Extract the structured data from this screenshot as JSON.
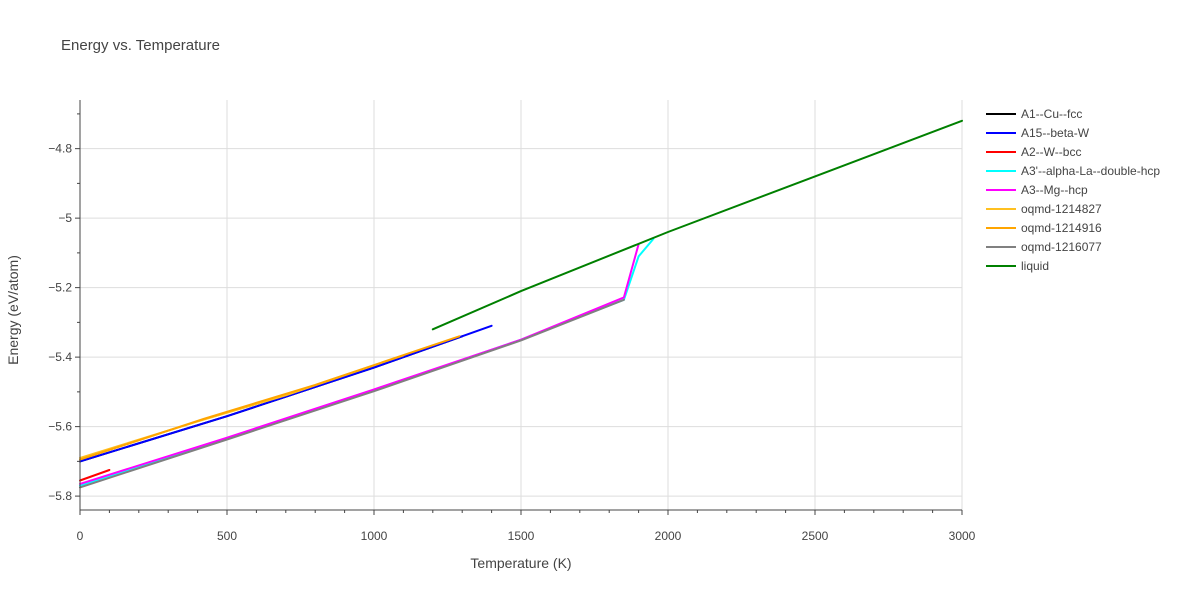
{
  "chart_data": {
    "type": "line",
    "title": "Energy vs. Temperature",
    "xlabel": "Temperature (K)",
    "ylabel": "Energy (eV/atom)",
    "xlim": [
      0,
      3000
    ],
    "ylim": [
      -5.84,
      -4.66
    ],
    "xticks": [
      0,
      500,
      1000,
      1500,
      2000,
      2500,
      3000
    ],
    "xtick_labels": [
      "0",
      "500",
      "1000",
      "1500",
      "2000",
      "2500",
      "3000"
    ],
    "yticks": [
      -5.8,
      -5.6,
      -5.4,
      -5.2,
      -5.0,
      -4.8
    ],
    "ytick_labels": [
      "−5.8",
      "−5.6",
      "−5.4",
      "−5.2",
      "−5",
      "−4.8"
    ],
    "grid": true,
    "legend_position": "right",
    "series": [
      {
        "name": "A1--Cu--fcc",
        "color": "#000000",
        "x": [
          0,
          500,
          1000,
          1300
        ],
        "y": [
          -5.7,
          -5.57,
          -5.43,
          -5.34
        ]
      },
      {
        "name": "A15--beta-W",
        "color": "#0000ff",
        "x": [
          0,
          500,
          1000,
          1400
        ],
        "y": [
          -5.7,
          -5.57,
          -5.43,
          -5.31
        ]
      },
      {
        "name": "A2--W--bcc",
        "color": "#ff0000",
        "x": [
          0,
          100
        ],
        "y": [
          -5.755,
          -5.725
        ]
      },
      {
        "name": "A3'--alpha-La--double-hcp",
        "color": "#00ffff",
        "x": [
          0,
          500,
          1000,
          1500,
          1850,
          1900,
          1950
        ],
        "y": [
          -5.77,
          -5.635,
          -5.495,
          -5.35,
          -5.235,
          -5.11,
          -5.06
        ]
      },
      {
        "name": "A3--Mg--hcp",
        "color": "#ff00ff",
        "x": [
          0,
          500,
          1000,
          1500,
          1850,
          1900
        ],
        "y": [
          -5.765,
          -5.632,
          -5.493,
          -5.35,
          -5.228,
          -5.075
        ]
      },
      {
        "name": "oqmd-1214827",
        "color": "#ffc020",
        "x": [
          0,
          400,
          700,
          1100
        ],
        "y": [
          -5.69,
          -5.585,
          -5.51,
          -5.395
        ]
      },
      {
        "name": "oqmd-1214916",
        "color": "#ffa500",
        "x": [
          0,
          420,
          800,
          1290
        ],
        "y": [
          -5.695,
          -5.578,
          -5.48,
          -5.34
        ]
      },
      {
        "name": "oqmd-1216077",
        "color": "#808080",
        "x": [
          0,
          500,
          1000,
          1500,
          1850
        ],
        "y": [
          -5.775,
          -5.637,
          -5.498,
          -5.352,
          -5.235
        ]
      },
      {
        "name": "liquid",
        "color": "#008000",
        "x": [
          1200,
          1500,
          2000,
          2500,
          3000
        ],
        "y": [
          -5.32,
          -5.21,
          -5.04,
          -4.88,
          -4.72
        ]
      }
    ]
  }
}
